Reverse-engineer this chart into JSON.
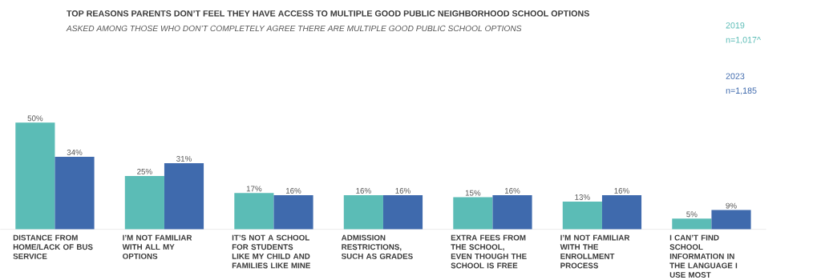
{
  "chart_data": {
    "type": "bar",
    "title": "TOP REASONS PARENTS DON’T FEEL THEY HAVE ACCESS TO MULTIPLE GOOD PUBLIC NEIGHBORHOOD SCHOOL OPTIONS",
    "subtitle": "ASKED AMONG THOSE WHO DON’T COMPLETELY AGREE THERE ARE MULTIPLE GOOD PUBLIC SCHOOL OPTIONS",
    "categories": [
      "DISTANCE FROM HOME/LACK OF BUS SERVICE",
      "I’M NOT FAMILIAR WITH ALL MY OPTIONS",
      "IT’S NOT A SCHOOL FOR STUDENTS LIKE MY CHILD AND FAMILIES LIKE MINE",
      "ADMISSION RESTRICTIONS, SUCH AS GRADES",
      "EXTRA FEES FROM THE SCHOOL, EVEN THOUGH THE SCHOOL IS FREE",
      "I’M NOT FAMILIAR WITH THE ENROLLMENT PROCESS",
      "I CAN’T FIND SCHOOL INFORMATION IN THE LANGUAGE I USE MOST"
    ],
    "series": [
      {
        "name": "2019",
        "color": "#5bbcb6",
        "values": [
          50,
          25,
          17,
          16,
          15,
          13,
          5
        ],
        "value_labels": [
          "50%",
          "25%",
          "17%",
          "16%",
          "15%",
          "13%",
          "5%"
        ]
      },
      {
        "name": "2023",
        "color": "#3f6aad",
        "values": [
          34,
          31,
          16,
          16,
          16,
          16,
          9
        ],
        "value_labels": [
          "34%",
          "31%",
          "16%",
          "16%",
          "16%",
          "16%",
          "9%"
        ]
      }
    ],
    "annotations": [
      "n=1,017^",
      "n=1,185"
    ],
    "legend": "top right"
  }
}
